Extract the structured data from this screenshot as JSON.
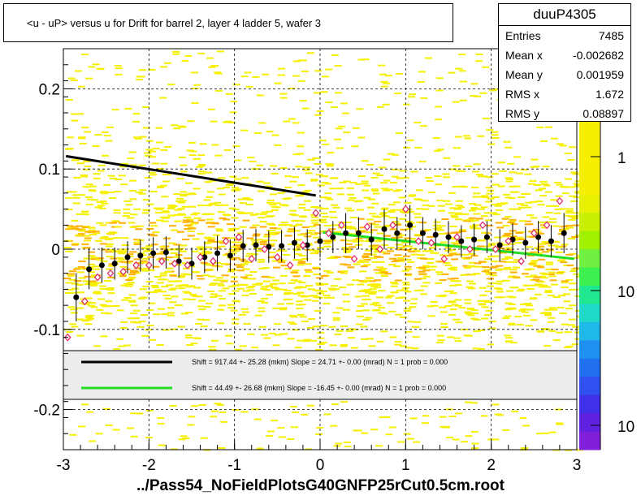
{
  "title": "<u - uP>       versus   u for Drift for barrel 2, layer 4 ladder 5, wafer 3",
  "stats": {
    "name": "duuP4305",
    "rows": [
      {
        "label": "Entries",
        "value": "7485"
      },
      {
        "label": "Mean x",
        "value": "-0.002682"
      },
      {
        "label": "Mean y",
        "value": "0.001959"
      },
      {
        "label": "RMS x",
        "value": "1.672"
      },
      {
        "label": "RMS y",
        "value": "0.08897"
      }
    ]
  },
  "footer_label": "../Pass54_NoFieldPlotsG40GNFP25rCut0.5cm.root",
  "colors": {
    "black_fit": "#000000",
    "green_fit": "#22dd22",
    "open_marker": "#e0206a",
    "density_yellow": "#f6f000",
    "density_orange": "#ffb000"
  },
  "chart_data": {
    "type": "scatter",
    "title": "<u - uP>       versus   u for Drift for barrel 2, layer 4 ladder 5, wafer 3",
    "xlabel": "../Pass54_NoFieldPlotsG40GNFP25rCut0.5cm.root",
    "ylabel": "",
    "xlim": [
      -3,
      3
    ],
    "ylim": [
      -0.25,
      0.25
    ],
    "xticks": [
      "-3",
      "-2",
      "-1",
      "0",
      "1",
      "2",
      "3"
    ],
    "yticks": [
      "-0.2",
      "-0.1",
      "0",
      "0.1",
      "0.2"
    ],
    "colorbar_ticks": [
      "1",
      "10",
      "10"
    ],
    "grid": true,
    "legend": {
      "placement": "lower-center",
      "entries": [
        {
          "color": "black",
          "text": "Shift =   917.44 +- 25.28 (mkm) Slope =    24.71 +- 0.00 (mrad)  N = 1 prob = 0.000"
        },
        {
          "color": "green",
          "text": "Shift =    44.49 +- 26.68 (mkm) Slope =   -16.45 +- 0.00 (mrad)  N = 1 prob = 0.000"
        }
      ]
    },
    "fit_lines": [
      {
        "name": "black",
        "x": [
          -2.97,
          -0.05
        ],
        "y": [
          0.116,
          0.067
        ]
      },
      {
        "name": "green",
        "x": [
          0.03,
          2.97
        ],
        "y": [
          0.021,
          -0.012
        ]
      }
    ],
    "profile_means": {
      "x": [
        -2.85,
        -2.7,
        -2.55,
        -2.4,
        -2.25,
        -2.1,
        -1.95,
        -1.8,
        -1.65,
        -1.5,
        -1.35,
        -1.2,
        -1.05,
        -0.9,
        -0.75,
        -0.6,
        -0.45,
        -0.3,
        -0.15,
        0.0,
        0.15,
        0.3,
        0.45,
        0.6,
        0.75,
        0.9,
        1.05,
        1.2,
        1.35,
        1.5,
        1.65,
        1.8,
        1.95,
        2.1,
        2.25,
        2.4,
        2.55,
        2.7,
        2.85
      ],
      "y": [
        -0.06,
        -0.025,
        -0.02,
        -0.018,
        -0.01,
        -0.008,
        -0.005,
        -0.004,
        -0.015,
        -0.018,
        -0.01,
        -0.005,
        -0.008,
        0.004,
        0.005,
        0.003,
        0.004,
        0.008,
        0.005,
        0.01,
        0.015,
        0.02,
        0.02,
        0.012,
        0.025,
        0.02,
        0.03,
        0.02,
        0.018,
        0.015,
        0.01,
        0.012,
        0.015,
        0.005,
        0.012,
        0.008,
        0.015,
        0.01,
        0.02
      ],
      "err": [
        0.03,
        0.025,
        0.022,
        0.02,
        0.02,
        0.02,
        0.02,
        0.02,
        0.02,
        0.02,
        0.02,
        0.022,
        0.02,
        0.02,
        0.02,
        0.02,
        0.02,
        0.02,
        0.02,
        0.02,
        0.02,
        0.025,
        0.02,
        0.02,
        0.025,
        0.02,
        0.025,
        0.02,
        0.02,
        0.02,
        0.02,
        0.02,
        0.02,
        0.02,
        0.02,
        0.02,
        0.02,
        0.02,
        0.025
      ]
    },
    "profile_open": {
      "x": [
        -2.95,
        -2.75,
        -2.6,
        -2.45,
        -2.3,
        -2.15,
        -2.0,
        -1.85,
        -1.7,
        -1.55,
        -1.4,
        -1.25,
        -1.1,
        -0.95,
        -0.8,
        -0.65,
        -0.5,
        -0.35,
        -0.2,
        -0.05,
        0.1,
        0.25,
        0.4,
        0.55,
        0.7,
        0.85,
        1.0,
        1.15,
        1.3,
        1.45,
        1.6,
        1.75,
        1.9,
        2.05,
        2.2,
        2.35,
        2.5,
        2.65,
        2.8
      ],
      "y": [
        -0.11,
        -0.065,
        -0.035,
        -0.03,
        -0.028,
        -0.02,
        -0.02,
        -0.015,
        -0.018,
        -0.02,
        -0.01,
        -0.015,
        0.01,
        0.015,
        -0.012,
        0.0,
        -0.01,
        -0.02,
        0.005,
        0.045,
        0.02,
        0.03,
        -0.012,
        0.028,
        0.0,
        0.03,
        0.05,
        0.01,
        0.008,
        -0.012,
        0.015,
        0.0,
        0.03,
        0.0,
        0.01,
        -0.015,
        0.02,
        0.03,
        0.06
      ]
    }
  }
}
